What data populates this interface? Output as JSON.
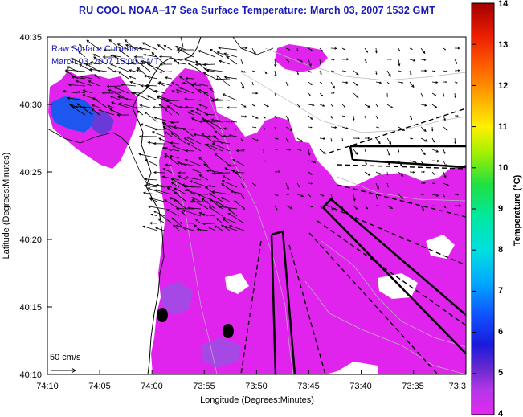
{
  "title": "RU COOL  NOAA−17  Sea Surface Temperature:  March 03, 2007 1532 GMT",
  "legend": {
    "line1": "Raw Surface Currents",
    "line2": "March 03, 2007 15:00 GMT",
    "scale_label": "50 cm/s"
  },
  "axes": {
    "xlabel": "Longitude (Degrees:Minutes)",
    "ylabel": "Latitude (Degrees:Minutes)",
    "x_ticks": [
      "74:10",
      "74:05",
      "74:00",
      "73:55",
      "73:50",
      "73:45",
      "73:40",
      "73:35",
      "73:3"
    ],
    "y_ticks": [
      "40:35",
      "40:30",
      "40:25",
      "40:20",
      "40:15",
      "40:10"
    ]
  },
  "colorbar": {
    "label": "Temperature (°C)",
    "min": 4,
    "max": 14,
    "ticks": [
      "14",
      "13",
      "12",
      "11",
      "10",
      "9",
      "8",
      "7",
      "6",
      "5",
      "4"
    ]
  },
  "colors": {
    "title": "#1a1ab4",
    "water_warm": "#e024ee",
    "water_cool": "#1e56f0",
    "land": "#ffffff"
  }
}
